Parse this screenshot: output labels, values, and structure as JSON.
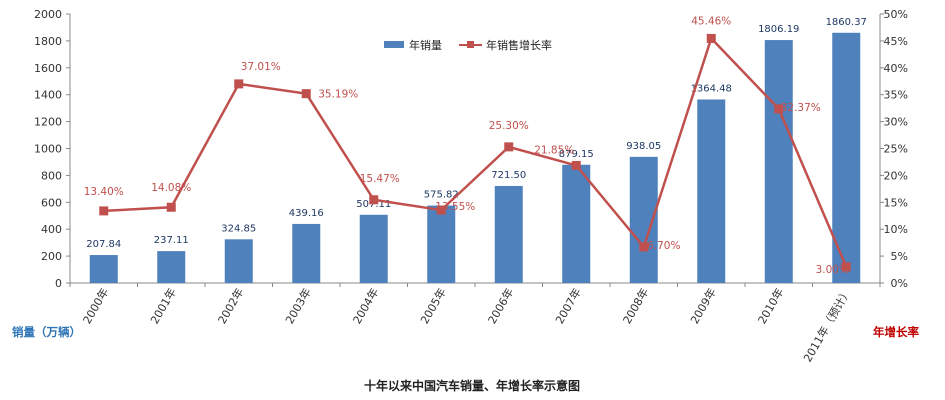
{
  "chart_data": {
    "type": "bar",
    "title": "十年以来中国汽车销量、年增长率示意图",
    "ylabel": "销量（万辆）",
    "y2label": "年增长率",
    "ylim": [
      0,
      2000
    ],
    "y2lim": [
      0,
      50
    ],
    "yticks": [
      "0",
      "200",
      "400",
      "600",
      "800",
      "1000",
      "1200",
      "1400",
      "1600",
      "1800",
      "2000"
    ],
    "y2ticks": [
      "0%",
      "5%",
      "10%",
      "15%",
      "20%",
      "25%",
      "30%",
      "35%",
      "40%",
      "45%",
      "50%"
    ],
    "categories": [
      "2000年",
      "2001年",
      "2002年",
      "2003年",
      "2004年",
      "2005年",
      "2006年",
      "2007年",
      "2008年",
      "2009年",
      "2010年",
      "2011年（预计）"
    ],
    "series": [
      {
        "name": "年销量",
        "type": "bar",
        "axis": "left",
        "color": "#4f81bd",
        "values": [
          207.84,
          237.11,
          324.85,
          439.16,
          507.11,
          575.82,
          721.5,
          879.15,
          938.05,
          1364.48,
          1806.19,
          1860.37
        ],
        "labels": [
          "207.84",
          "237.11",
          "324.85",
          "439.16",
          "507.11",
          "575.82",
          "721.50",
          "879.15",
          "938.05",
          "1364.48",
          "1806.19",
          "1860.37"
        ]
      },
      {
        "name": "年销售增长率",
        "type": "line",
        "axis": "right",
        "color": "#c0504d",
        "values": [
          13.4,
          14.08,
          37.01,
          35.19,
          15.47,
          13.55,
          25.3,
          21.85,
          6.7,
          45.46,
          32.37,
          3.0
        ],
        "labels": [
          "13.40%",
          "14.08%",
          "37.01%",
          "35.19%",
          "15.47%",
          "13.55%",
          "25.30%",
          "21.85%",
          "6.70%",
          "45.46%",
          "32.37%",
          "3.00%"
        ]
      }
    ],
    "legend": "top-center",
    "grid": false,
    "colors": {
      "ylabel": "#2e75b6",
      "y2label": "#c00000",
      "axis": "#888888"
    }
  }
}
